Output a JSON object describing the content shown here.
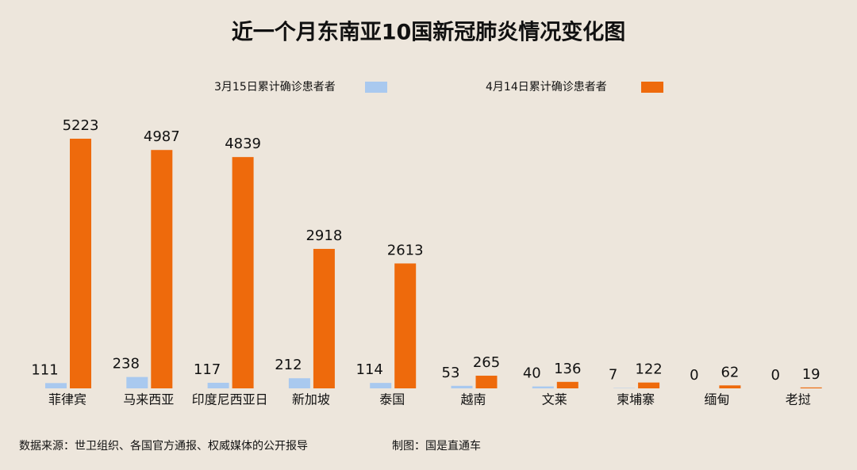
{
  "chart_data": {
    "type": "bar",
    "title": "近一个月东南亚10国新冠肺炎情况变化图",
    "categories": [
      "菲律宾",
      "马来西亚",
      "印度尼西亚日",
      "新加坡",
      "泰国",
      "越南",
      "文莱",
      "柬埔寨",
      "缅甸",
      "老挝"
    ],
    "series": [
      {
        "name": "3月15日累计确诊患者者",
        "color": "#a9c9ef",
        "values": [
          111,
          238,
          117,
          212,
          114,
          53,
          40,
          7,
          0,
          0
        ]
      },
      {
        "name": "4月14日累计确诊患者者",
        "color": "#ee6a0c",
        "values": [
          5223,
          4987,
          4839,
          2918,
          2613,
          265,
          136,
          122,
          62,
          19
        ]
      }
    ],
    "source": "数据来源：世卫组织、各国官方通报、权威媒体的公开报导",
    "credit": "制图：国是直通车"
  }
}
